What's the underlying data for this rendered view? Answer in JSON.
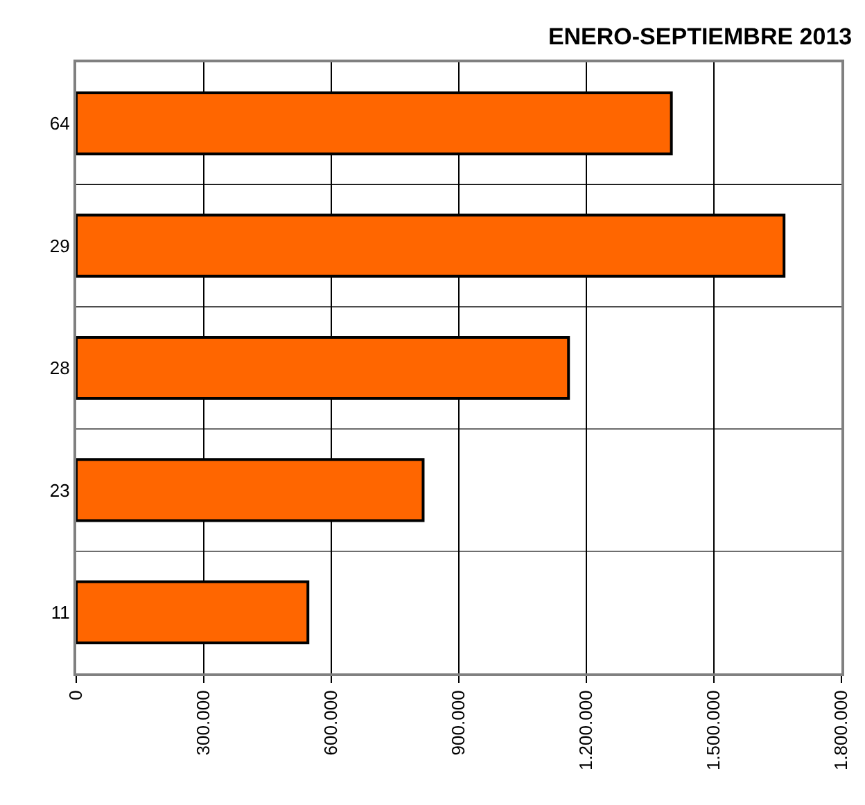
{
  "chart_data": {
    "type": "bar",
    "orientation": "horizontal",
    "title": "ENERO-SEPTIEMBRE 2013",
    "categories": [
      "64",
      "29",
      "28",
      "23",
      "11"
    ],
    "values": [
      1400000,
      1665000,
      1158000,
      816000,
      545000
    ],
    "color": "#ff6600",
    "xlim": [
      0,
      1800000
    ],
    "xticks": [
      0,
      {
        "value": 300000,
        "label": "300.000"
      },
      {
        "value": 600000,
        "label": "600.000"
      },
      {
        "value": 900000,
        "label": "900.000"
      },
      {
        "value": 1200000,
        "label": "1.200.000"
      },
      {
        "value": 1500000,
        "label": "1.500.000"
      },
      {
        "value": 1800000,
        "label": "1.800.000"
      }
    ],
    "grid": true
  }
}
